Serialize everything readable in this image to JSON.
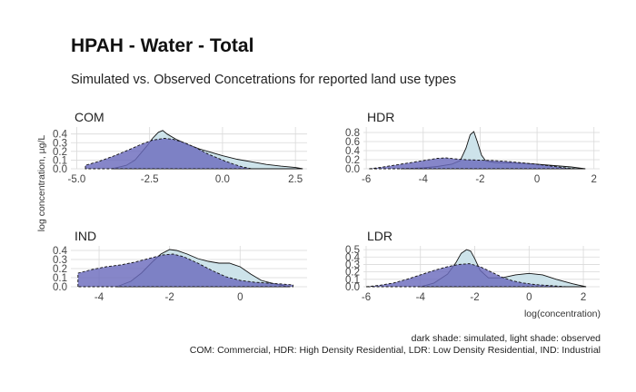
{
  "chart_data": {
    "type": "area",
    "title": "HPAH - Water - Total",
    "subtitle": "Simulated vs. Observed Concetrations for reported land use types",
    "xlabel": "log(concentration)",
    "ylabel": "log concentration, µg/L",
    "caption_line1": "dark shade: simulated, light shade: observed",
    "caption_line2": "COM: Commercial, HDR: High Density Residential, LDR: Low Density Residential, IND: Industrial",
    "colors": {
      "simulated": "#6b6bbd",
      "observed": "#cde3ea",
      "outline": "#111111"
    },
    "grid": true,
    "panels": [
      {
        "name": "COM",
        "xlim": [
          -5.2,
          2.9
        ],
        "xticks": [
          -5.0,
          -2.5,
          0.0,
          2.5
        ],
        "xtick_labels": [
          "-5.0",
          "-2.5",
          "0.0",
          "2.5"
        ],
        "ylim": [
          0,
          0.48
        ],
        "yticks": [
          0.0,
          0.1,
          0.2,
          0.3,
          0.4
        ],
        "ytick_labels": [
          "0.0",
          "0.1",
          "0.2",
          "0.3",
          "0.4"
        ],
        "series": [
          {
            "name": "observed",
            "x": [
              -3.8,
              -3.3,
              -3.0,
              -2.8,
              -2.6,
              -2.4,
              -2.2,
              -2.05,
              -1.9,
              -1.6,
              -1.2,
              -0.8,
              -0.4,
              0.0,
              0.5,
              1.0,
              1.5,
              2.0,
              2.5,
              2.75
            ],
            "y": [
              0.0,
              0.04,
              0.1,
              0.18,
              0.26,
              0.35,
              0.42,
              0.44,
              0.4,
              0.34,
              0.28,
              0.23,
              0.19,
              0.15,
              0.11,
              0.08,
              0.05,
              0.03,
              0.015,
              0.0
            ]
          },
          {
            "name": "simulated",
            "x": [
              -4.7,
              -4.2,
              -3.7,
              -3.2,
              -2.8,
              -2.4,
              -2.0,
              -1.7,
              -1.3,
              -0.9,
              -0.5,
              0.0,
              0.4,
              0.7,
              1.0
            ],
            "y": [
              0.04,
              0.09,
              0.15,
              0.22,
              0.28,
              0.33,
              0.35,
              0.34,
              0.3,
              0.24,
              0.17,
              0.1,
              0.05,
              0.02,
              0.0
            ]
          }
        ]
      },
      {
        "name": "HDR",
        "xlim": [
          -6.1,
          2.2
        ],
        "xticks": [
          -6,
          -4,
          -2,
          0,
          2
        ],
        "xtick_labels": [
          "-6",
          "-4",
          "-2",
          "0",
          "2"
        ],
        "ylim": [
          0,
          0.92
        ],
        "yticks": [
          0.0,
          0.2,
          0.4,
          0.6,
          0.8
        ],
        "ytick_labels": [
          "0.0",
          "0.2",
          "0.4",
          "0.6",
          "0.8"
        ],
        "series": [
          {
            "name": "observed",
            "x": [
              -4.8,
              -4.0,
              -3.5,
              -3.0,
              -2.7,
              -2.5,
              -2.35,
              -2.22,
              -2.1,
              -1.95,
              -1.8,
              -1.5,
              -1.0,
              -0.5,
              0.0,
              0.6,
              1.2,
              1.7
            ],
            "y": [
              0.0,
              0.02,
              0.05,
              0.1,
              0.18,
              0.45,
              0.75,
              0.82,
              0.6,
              0.3,
              0.17,
              0.14,
              0.13,
              0.12,
              0.1,
              0.07,
              0.04,
              0.0
            ]
          },
          {
            "name": "simulated",
            "x": [
              -5.9,
              -5.5,
              -5.0,
              -4.5,
              -4.0,
              -3.5,
              -3.2,
              -2.9,
              -2.5,
              -2.0,
              -1.5,
              -1.0,
              -0.5,
              0.0,
              0.5,
              1.0,
              1.4
            ],
            "y": [
              0.0,
              0.03,
              0.08,
              0.13,
              0.18,
              0.23,
              0.24,
              0.22,
              0.2,
              0.19,
              0.18,
              0.16,
              0.13,
              0.1,
              0.06,
              0.02,
              0.0
            ]
          }
        ]
      },
      {
        "name": "IND",
        "xlim": [
          -4.8,
          1.9
        ],
        "xticks": [
          -4,
          -2,
          0
        ],
        "xtick_labels": [
          "-4",
          "-2",
          "0"
        ],
        "ylim": [
          0,
          0.45
        ],
        "yticks": [
          0.0,
          0.1,
          0.2,
          0.3,
          0.4
        ],
        "ytick_labels": [
          "0.0",
          "0.1",
          "0.2",
          "0.3",
          "0.4"
        ],
        "series": [
          {
            "name": "observed",
            "x": [
              -3.5,
              -3.1,
              -2.8,
              -2.5,
              -2.25,
              -2.0,
              -1.8,
              -1.5,
              -1.2,
              -0.9,
              -0.6,
              -0.3,
              0.0,
              0.3,
              0.6,
              1.0,
              1.4
            ],
            "y": [
              0.0,
              0.06,
              0.15,
              0.27,
              0.36,
              0.41,
              0.4,
              0.36,
              0.31,
              0.28,
              0.26,
              0.26,
              0.22,
              0.14,
              0.07,
              0.03,
              0.0
            ]
          },
          {
            "name": "simulated",
            "x": [
              -4.6,
              -4.2,
              -3.8,
              -3.4,
              -3.0,
              -2.6,
              -2.2,
              -1.9,
              -1.6,
              -1.2,
              -0.8,
              -0.4,
              0.0,
              0.4,
              0.8,
              1.2,
              1.5
            ],
            "y": [
              0.15,
              0.19,
              0.22,
              0.24,
              0.27,
              0.31,
              0.35,
              0.36,
              0.33,
              0.26,
              0.18,
              0.11,
              0.07,
              0.05,
              0.04,
              0.03,
              0.02
            ]
          }
        ]
      },
      {
        "name": "LDR",
        "xlim": [
          -6.1,
          2.6
        ],
        "xticks": [
          -6,
          -4,
          -2,
          0,
          2
        ],
        "xtick_labels": [
          "-6",
          "-4",
          "-2",
          "0",
          "2"
        ],
        "ylim": [
          0,
          0.55
        ],
        "yticks": [
          0.0,
          0.1,
          0.2,
          0.3,
          0.4,
          0.5
        ],
        "ytick_labels": [
          "0.0",
          "0.1",
          "0.2",
          "0.3",
          "0.4",
          "0.5"
        ],
        "series": [
          {
            "name": "observed",
            "x": [
              -4.0,
              -3.5,
              -3.0,
              -2.7,
              -2.5,
              -2.3,
              -2.15,
              -2.0,
              -1.8,
              -1.5,
              -1.0,
              -0.5,
              0.0,
              0.5,
              1.0,
              1.6,
              2.1
            ],
            "y": [
              0.0,
              0.05,
              0.17,
              0.32,
              0.45,
              0.5,
              0.48,
              0.38,
              0.22,
              0.12,
              0.12,
              0.16,
              0.18,
              0.16,
              0.1,
              0.04,
              0.0
            ]
          },
          {
            "name": "simulated",
            "x": [
              -6.0,
              -5.5,
              -5.0,
              -4.5,
              -4.0,
              -3.5,
              -3.0,
              -2.6,
              -2.2,
              -1.8,
              -1.4,
              -1.0,
              -0.6,
              -0.2,
              0.2,
              0.6,
              1.0,
              1.4
            ],
            "y": [
              0.0,
              0.02,
              0.05,
              0.1,
              0.16,
              0.22,
              0.27,
              0.3,
              0.31,
              0.27,
              0.2,
              0.13,
              0.08,
              0.05,
              0.03,
              0.02,
              0.01,
              0.0
            ]
          }
        ]
      }
    ]
  }
}
